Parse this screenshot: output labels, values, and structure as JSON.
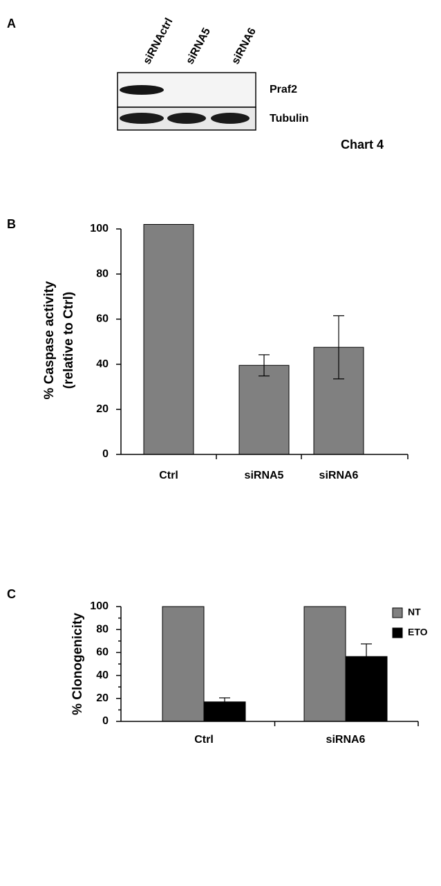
{
  "blot": {
    "panel": "A",
    "lanes": [
      "siRNActrl",
      "siRNA5",
      "siRNA6"
    ],
    "rows": [
      "Praf2",
      "Tubulin"
    ],
    "caption": "Chart 4"
  },
  "chart_data": [
    {
      "type": "bar",
      "panel": "B",
      "ylabel": [
        "% Caspase activity",
        "(relative to Ctrl)"
      ],
      "categories": [
        "Ctrl",
        "siRNA5",
        "siRNA6"
      ],
      "values": [
        102,
        39.5,
        47.5
      ],
      "errors": [
        null,
        4.7,
        14
      ],
      "color": "#808080",
      "ylim": [
        0,
        100
      ],
      "yticks": [
        0,
        20,
        40,
        60,
        80,
        100
      ]
    },
    {
      "type": "bar",
      "panel": "C",
      "ylabel": [
        "% Clonogenicity"
      ],
      "categories": [
        "Ctrl",
        "siRNA6"
      ],
      "series": [
        {
          "name": "NT",
          "color": "#808080",
          "values": [
            100,
            100
          ],
          "errors": [
            null,
            null
          ]
        },
        {
          "name": "ETO",
          "color": "#000000",
          "values": [
            17,
            56.5
          ],
          "errors": [
            3.5,
            11
          ]
        }
      ],
      "ylim": [
        0,
        100
      ],
      "yticks": [
        0,
        20,
        40,
        60,
        80,
        100
      ],
      "minor_yticks": [
        10,
        30,
        50,
        70,
        90
      ],
      "legend": "top-right"
    }
  ]
}
